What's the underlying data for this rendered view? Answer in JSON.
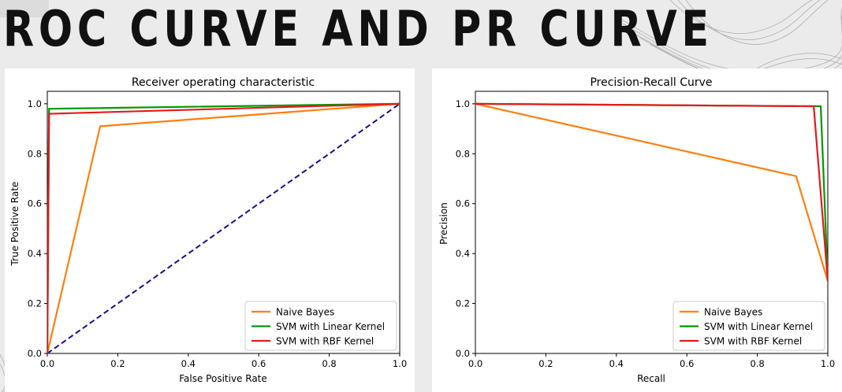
{
  "slide": {
    "title": "ROC CURVE AND PR CURVE"
  },
  "chart_data": [
    {
      "type": "line",
      "title": "Receiver operating characteristic",
      "xlabel": "False Positive Rate",
      "ylabel": "True Positive Rate",
      "xlim": [
        0,
        1
      ],
      "ylim": [
        0,
        1.05
      ],
      "xticks": [
        "0.0",
        "0.2",
        "0.4",
        "0.6",
        "0.8",
        "1.0"
      ],
      "yticks": [
        "0.0",
        "0.2",
        "0.4",
        "0.6",
        "0.8",
        "1.0"
      ],
      "grid": false,
      "legend_position": "lower-right",
      "series": [
        {
          "name": "Naive Bayes",
          "color": "#ff7f0e",
          "x": [
            0,
            0.15,
            1
          ],
          "y": [
            0,
            0.91,
            1
          ]
        },
        {
          "name": "SVM with Linear Kernel",
          "color": "#009900",
          "x": [
            0,
            0.005,
            1
          ],
          "y": [
            0,
            0.98,
            1
          ]
        },
        {
          "name": "SVM with RBF Kernel",
          "color": "#e41a1c",
          "x": [
            0,
            0.005,
            1
          ],
          "y": [
            0,
            0.96,
            1
          ]
        }
      ],
      "reference_line": {
        "color": "#1f0a8c",
        "style": "dashed",
        "x": [
          0,
          1
        ],
        "y": [
          0,
          1
        ]
      }
    },
    {
      "type": "line",
      "title": "Precision-Recall Curve",
      "xlabel": "Recall",
      "ylabel": "Precision",
      "xlim": [
        0,
        1
      ],
      "ylim": [
        0,
        1.05
      ],
      "xticks": [
        "0.0",
        "0.2",
        "0.4",
        "0.6",
        "0.8",
        "1.0"
      ],
      "yticks": [
        "0.0",
        "0.2",
        "0.4",
        "0.6",
        "0.8",
        "1.0"
      ],
      "grid": false,
      "legend_position": "lower-right",
      "series": [
        {
          "name": "Naive Bayes",
          "color": "#ff7f0e",
          "x": [
            0,
            0.91,
            1
          ],
          "y": [
            1,
            0.71,
            0.29
          ]
        },
        {
          "name": "SVM with Linear Kernel",
          "color": "#009900",
          "x": [
            0,
            0.98,
            1
          ],
          "y": [
            1,
            0.99,
            0.29
          ]
        },
        {
          "name": "SVM with RBF Kernel",
          "color": "#e41a1c",
          "x": [
            0,
            0.96,
            1
          ],
          "y": [
            1,
            0.99,
            0.29
          ]
        }
      ]
    }
  ]
}
